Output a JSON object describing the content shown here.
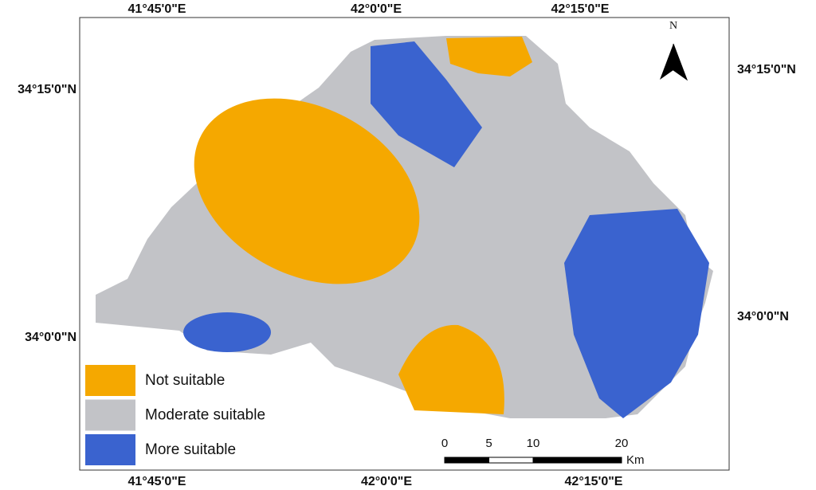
{
  "map": {
    "north_label": "N",
    "top_labels": [
      "41°45'0\"E",
      "42°0'0\"E",
      "42°15'0\"E"
    ],
    "bottom_labels": [
      "41°45'0\"E",
      "42°0'0\"E",
      "42°15'0\"E"
    ],
    "left_labels": [
      "34°15'0\"N",
      "34°0'0\"N"
    ],
    "right_labels": [
      "34°15'0\"N",
      "34°0'0\"N"
    ],
    "legend": [
      {
        "label": "Not suitable",
        "color": "#f5a800"
      },
      {
        "label": "Moderate suitable",
        "color": "#c2c3c7"
      },
      {
        "label": "More suitable",
        "color": "#3a63cf"
      }
    ],
    "scale": {
      "ticks": [
        0,
        5,
        10,
        20
      ],
      "unit": "Km"
    }
  }
}
